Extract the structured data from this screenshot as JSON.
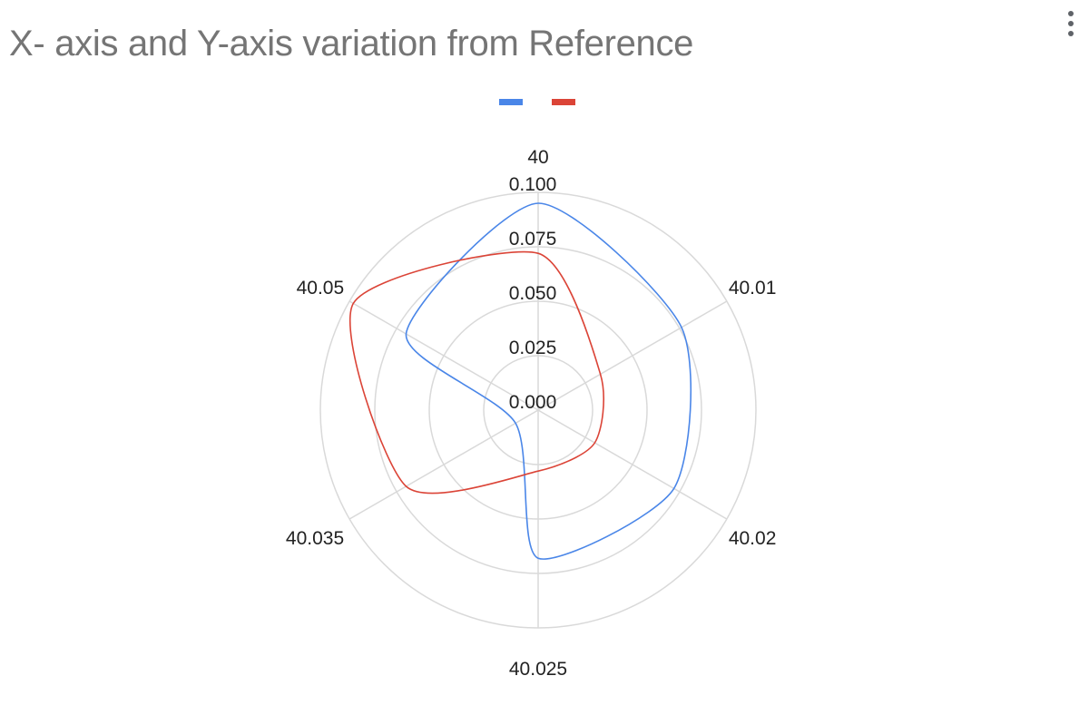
{
  "chart_data": {
    "type": "radar",
    "title": "X- axis and Y-axis variation from Reference",
    "categories": [
      "40",
      "40.01",
      "40.02",
      "40.025",
      "40.035",
      "40.05"
    ],
    "radial_ticks": [
      "0.000",
      "0.025",
      "0.050",
      "0.075",
      "0.100"
    ],
    "rlim": [
      0,
      0.1
    ],
    "grid": true,
    "legend_position": "top",
    "series": [
      {
        "color": "#4a86e8",
        "values": [
          0.095,
          0.076,
          0.072,
          0.068,
          0.012,
          0.07
        ]
      },
      {
        "color": "#db4437",
        "values": [
          0.072,
          0.033,
          0.03,
          0.028,
          0.07,
          0.098
        ]
      }
    ]
  }
}
